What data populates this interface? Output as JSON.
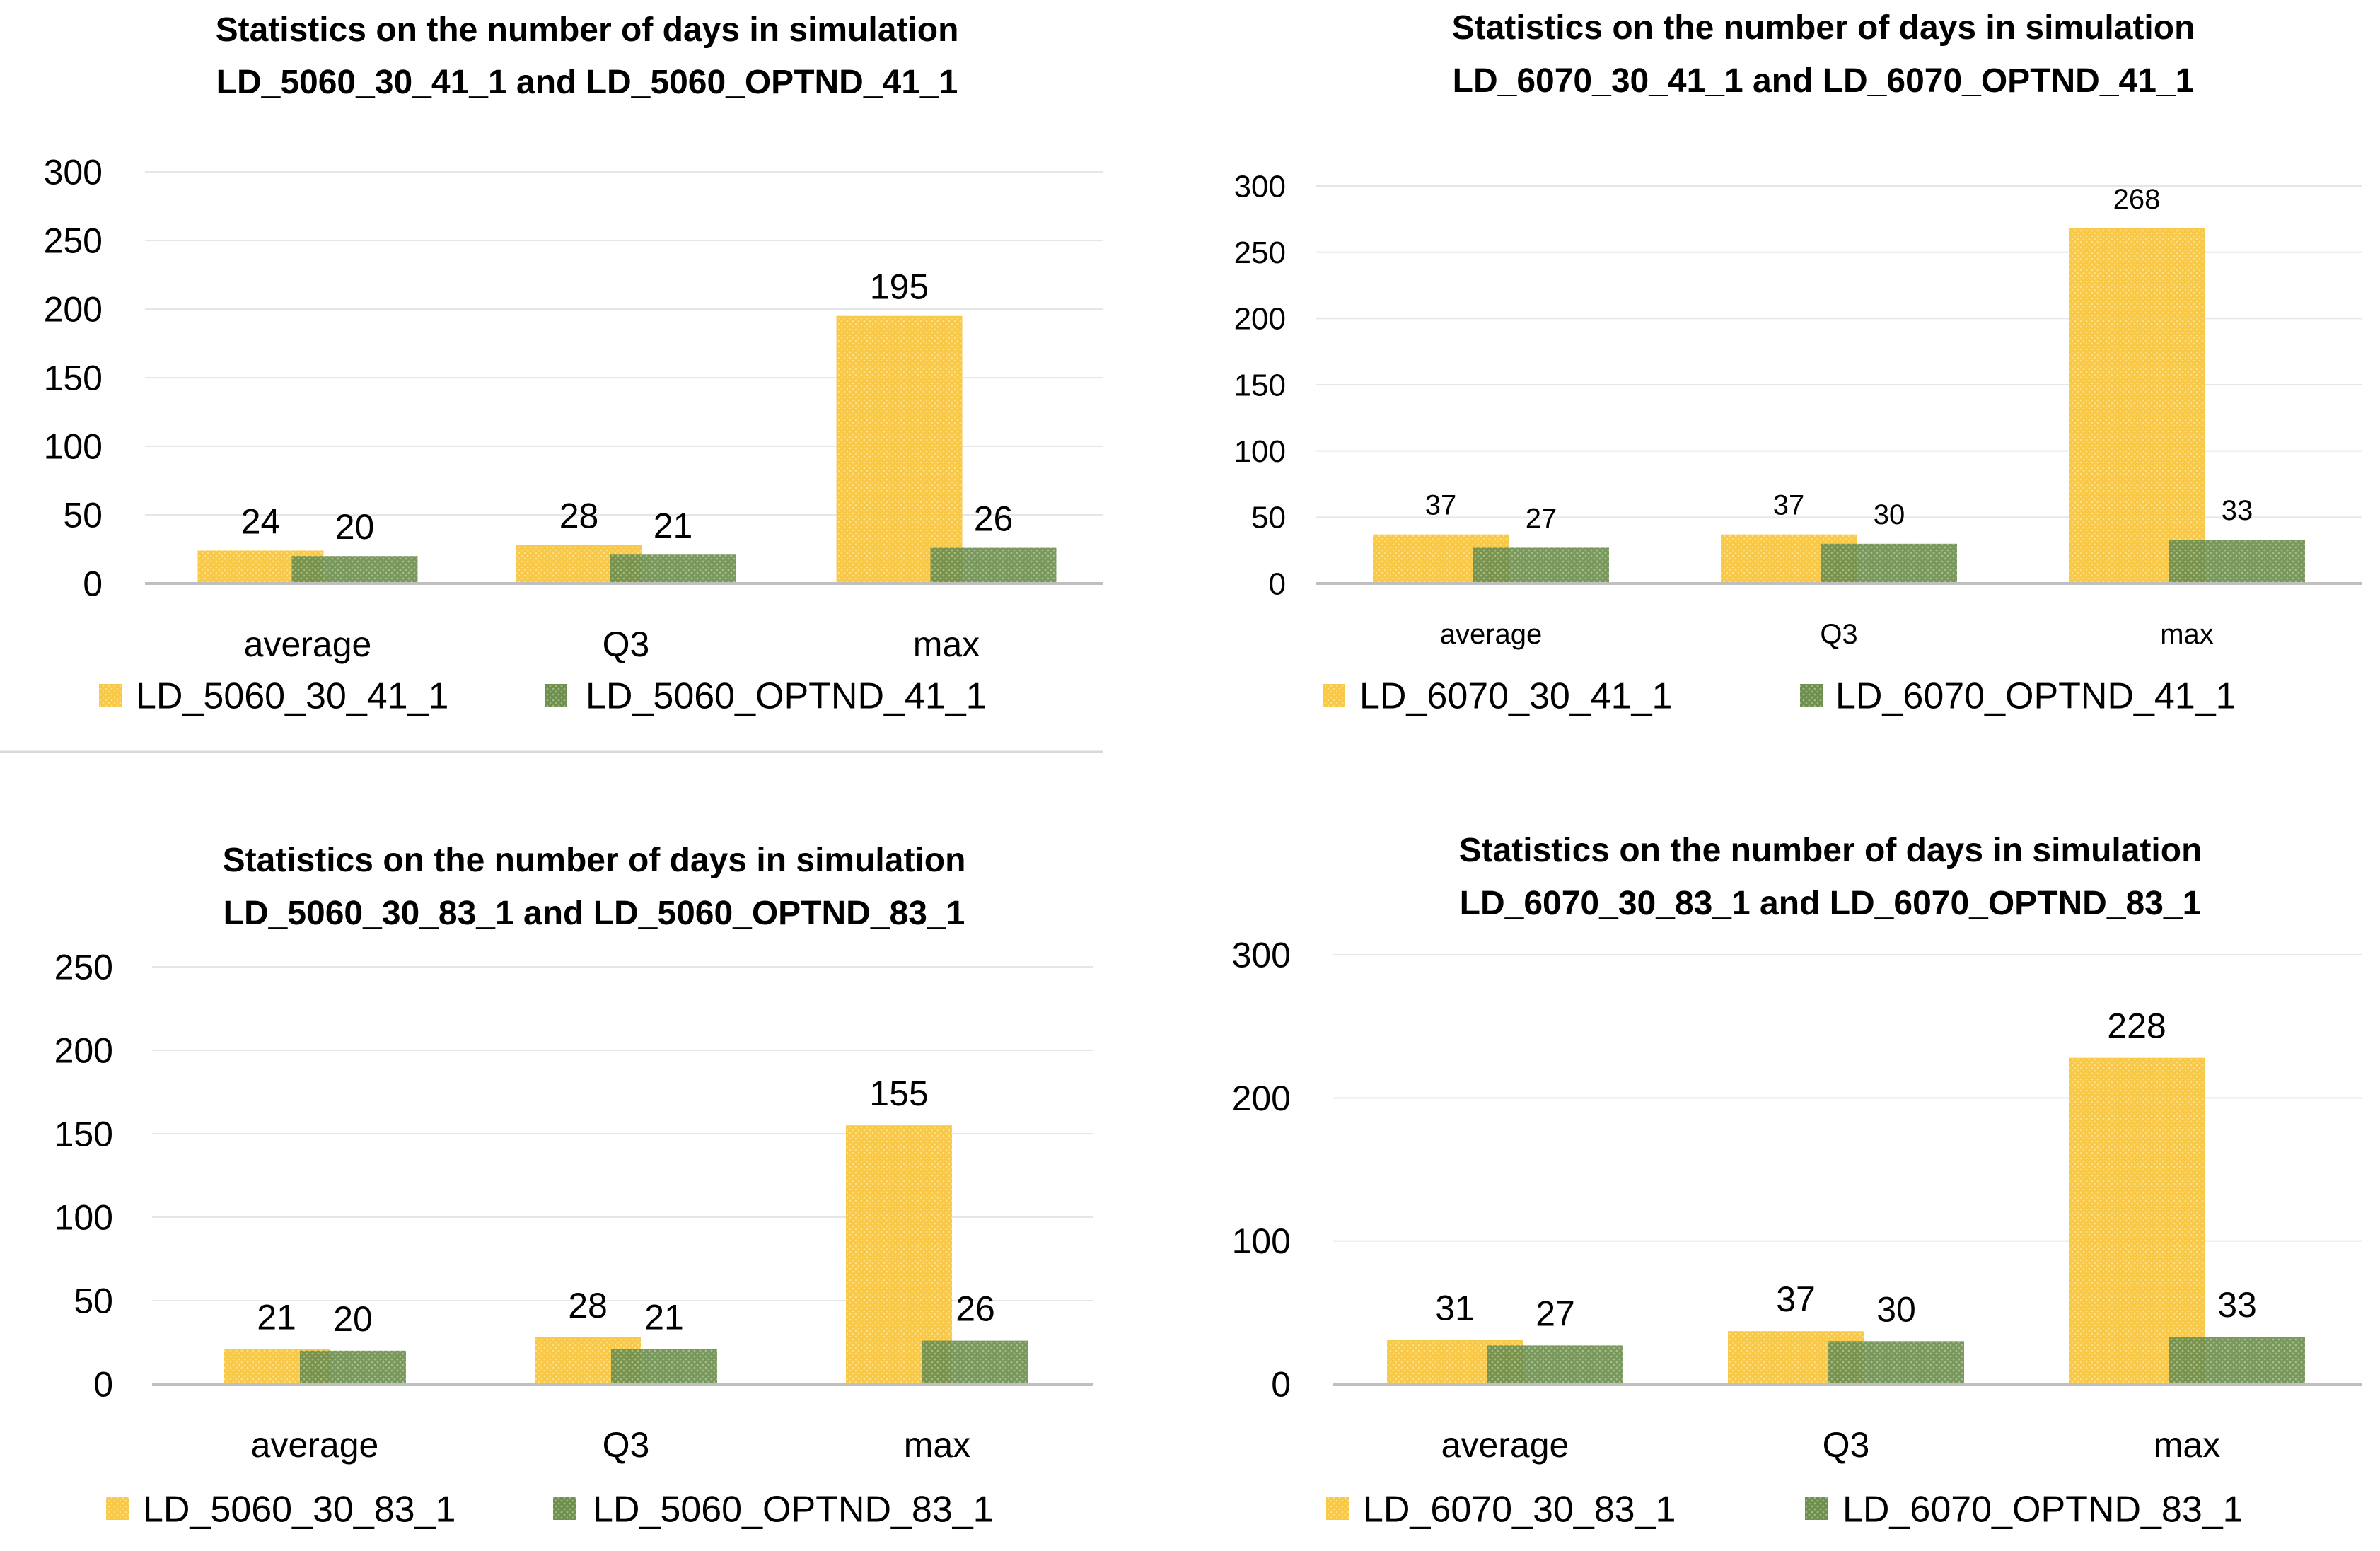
{
  "colors": {
    "series1": "#f9c847",
    "series1_dot": "#fbe08a",
    "series2": "#6e8f4e",
    "series2_dot": "#9eb987",
    "grid": "#e6e6e6",
    "axis": "#bfbfbf",
    "separator": "#d9d9d9"
  },
  "chart_data": [
    {
      "type": "bar",
      "title": "Statistics on the number of days in simulation",
      "subtitle": "LD_5060_30_41_1 and LD_5060_OPTND_41_1",
      "categories": [
        "average",
        "Q3",
        "max"
      ],
      "series": [
        {
          "name": "LD_5060_30_41_1",
          "values": [
            24,
            28,
            195
          ],
          "labels": [
            "24",
            "28",
            "195"
          ]
        },
        {
          "name": "LD_5060_OPTND_41_1",
          "values": [
            20,
            21,
            26
          ],
          "labels": [
            "20",
            "21",
            "26"
          ]
        }
      ],
      "ylim": [
        0,
        300
      ],
      "yticks": [
        "0",
        "50",
        "100",
        "150",
        "200",
        "250",
        "300"
      ],
      "ytick_values": [
        0,
        50,
        100,
        150,
        200,
        250,
        300
      ],
      "grid": true,
      "legend": "bottom"
    },
    {
      "type": "bar",
      "title": "Statistics on the number of days in simulation",
      "subtitle": "LD_6070_30_41_1 and LD_6070_OPTND_41_1",
      "categories": [
        "average",
        "Q3",
        "max"
      ],
      "series": [
        {
          "name": "LD_6070_30_41_1",
          "values": [
            37,
            37,
            268
          ],
          "labels": [
            "37",
            "37",
            "268"
          ]
        },
        {
          "name": "LD_6070_OPTND_41_1",
          "values": [
            27,
            30,
            33
          ],
          "labels": [
            "27",
            "30",
            "33"
          ]
        }
      ],
      "ylim": [
        0,
        300
      ],
      "yticks": [
        "0",
        "50",
        "100",
        "150",
        "200",
        "250",
        "300"
      ],
      "ytick_values": [
        0,
        50,
        100,
        150,
        200,
        250,
        300
      ],
      "grid": true,
      "legend": "bottom"
    },
    {
      "type": "bar",
      "title": "Statistics on the number of days in simulation",
      "subtitle": "LD_5060_30_83_1 and LD_5060_OPTND_83_1",
      "categories": [
        "average",
        "Q3",
        "max"
      ],
      "series": [
        {
          "name": "LD_5060_30_83_1",
          "values": [
            21,
            28,
            155
          ],
          "labels": [
            "21",
            "28",
            "155"
          ]
        },
        {
          "name": "LD_5060_OPTND_83_1",
          "values": [
            20,
            21,
            26
          ],
          "labels": [
            "20",
            "21",
            "26"
          ]
        }
      ],
      "ylim": [
        0,
        250
      ],
      "yticks": [
        "0",
        "50",
        "100",
        "150",
        "200",
        "250"
      ],
      "ytick_values": [
        0,
        50,
        100,
        150,
        200,
        250
      ],
      "grid": true,
      "legend": "bottom"
    },
    {
      "type": "bar",
      "title": "Statistics on the number of days in simulation",
      "subtitle": "LD_6070_30_83_1 and LD_6070_OPTND_83_1",
      "categories": [
        "average",
        "Q3",
        "max"
      ],
      "series": [
        {
          "name": "LD_6070_30_83_1",
          "values": [
            31,
            37,
            228
          ],
          "labels": [
            "31",
            "37",
            "228"
          ]
        },
        {
          "name": "LD_6070_OPTND_83_1",
          "values": [
            27,
            30,
            33
          ],
          "labels": [
            "27",
            "30",
            "33"
          ]
        }
      ],
      "ylim": [
        0,
        300
      ],
      "yticks": [
        "0",
        "100",
        "200",
        "300"
      ],
      "ytick_values": [
        0,
        100,
        200,
        300
      ],
      "grid": true,
      "legend": "bottom"
    }
  ]
}
